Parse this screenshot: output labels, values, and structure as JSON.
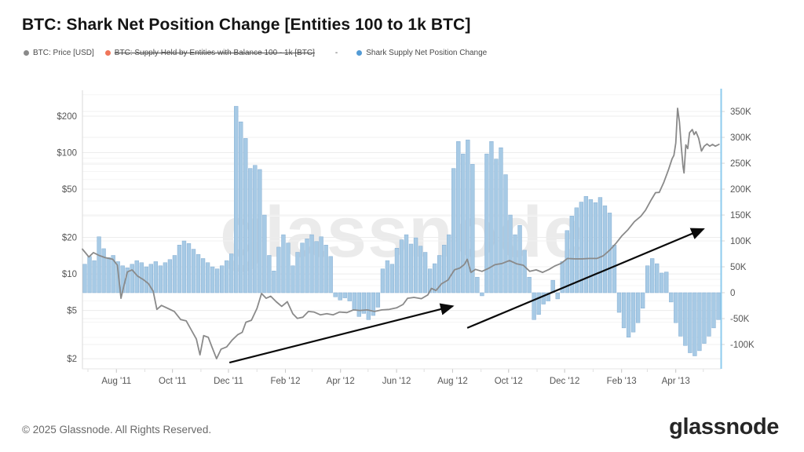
{
  "header": {
    "title": "BTC: Shark Net Position Change [Entities 100 to 1k BTC]"
  },
  "legend": [
    {
      "label": "BTC: Price [USD]",
      "color": "#8a8a8a",
      "strikethrough": false
    },
    {
      "label": "BTC: Supply Held by Entities with Balance 100 - 1k [BTC]",
      "color": "#f0765a",
      "strikethrough": true
    },
    {
      "label": "Shark Supply Net Position Change",
      "color": "#539bd5",
      "strikethrough": false
    }
  ],
  "legend_separator": "-",
  "watermark": "glassnode",
  "footer": {
    "copyright": "© 2025 Glassnode. All Rights Reserved.",
    "brand": "glassnode"
  },
  "colors": {
    "bar_fill": "#a7cae5",
    "bar_stroke": "#84aed3",
    "price_line": "#8a8a8a",
    "right_axis_line": "#8ecbee",
    "grid_major": "#ececec",
    "grid_minor": "#f5f5f5",
    "grid_right": "#f0f0f0",
    "axis_text": "#555555",
    "annotation": "#0a0a0a"
  },
  "chart_data": {
    "type": "mixed",
    "x_domain": [
      "2011-06-25",
      "2013-05-20"
    ],
    "x_ticks": [
      {
        "date": "2011-08-01",
        "label": "Aug '11"
      },
      {
        "date": "2011-10-01",
        "label": "Oct '11"
      },
      {
        "date": "2011-12-01",
        "label": "Dec '11"
      },
      {
        "date": "2012-02-01",
        "label": "Feb '12"
      },
      {
        "date": "2012-04-01",
        "label": "Apr '12"
      },
      {
        "date": "2012-06-01",
        "label": "Jun '12"
      },
      {
        "date": "2012-08-01",
        "label": "Aug '12"
      },
      {
        "date": "2012-10-01",
        "label": "Oct '12"
      },
      {
        "date": "2012-12-01",
        "label": "Dec '12"
      },
      {
        "date": "2013-02-01",
        "label": "Feb '13"
      },
      {
        "date": "2013-04-01",
        "label": "Apr '13"
      }
    ],
    "y_left": {
      "scale": "log",
      "title": "BTC Price [USD]",
      "range": [
        1.65,
        327
      ],
      "ticks": [
        2,
        5,
        10,
        20,
        50,
        100,
        200
      ],
      "labels": [
        "$2",
        "$5",
        "$10",
        "$20",
        "$50",
        "$100",
        "$200"
      ],
      "minor_ticks": [
        3,
        4,
        6,
        7,
        8,
        9,
        30,
        40,
        60,
        70,
        80,
        90,
        300
      ]
    },
    "y_right": {
      "scale": "linear",
      "title": "Shark Supply Net Position Change",
      "range": [
        -147,
        391
      ],
      "ticks": [
        -100,
        -50,
        0,
        50,
        100,
        150,
        200,
        250,
        300,
        350
      ],
      "labels": [
        "-100K",
        "-50K",
        "0",
        "50K",
        "100K",
        "150K",
        "200K",
        "250K",
        "300K",
        "350K"
      ]
    },
    "series": [
      {
        "name": "Shark Supply Net Position Change",
        "type": "bar",
        "axis": "right",
        "unit": "K BTC",
        "values_k": [
          55,
          70,
          62,
          108,
          85,
          68,
          72,
          60,
          52,
          48,
          55,
          62,
          58,
          50,
          55,
          60,
          52,
          58,
          64,
          72,
          92,
          100,
          95,
          84,
          74,
          66,
          58,
          50,
          46,
          52,
          62,
          75,
          360,
          330,
          298,
          240,
          246,
          238,
          150,
          72,
          42,
          88,
          112,
          96,
          52,
          78,
          96,
          104,
          112,
          99,
          108,
          92,
          70,
          -8,
          -14,
          -10,
          -16,
          -34,
          -46,
          -40,
          -52,
          -44,
          -28,
          46,
          62,
          55,
          86,
          102,
          112,
          94,
          106,
          90,
          78,
          46,
          56,
          72,
          92,
          112,
          240,
          292,
          268,
          295,
          248,
          30,
          -6,
          268,
          292,
          258,
          280,
          228,
          150,
          112,
          130,
          82,
          30,
          -52,
          -42,
          -22,
          -16,
          24,
          -12,
          60,
          120,
          148,
          164,
          175,
          186,
          180,
          174,
          184,
          168,
          154,
          92,
          -38,
          -68,
          -86,
          -76,
          -58,
          -30,
          52,
          66,
          56,
          38,
          40,
          -18,
          -58,
          -84,
          -102,
          -116,
          -122,
          -112,
          -98,
          -84,
          -68,
          -52
        ]
      },
      {
        "name": "BTC: Price [USD]",
        "type": "line",
        "axis": "left",
        "unit": "USD",
        "points": [
          [
            "2011-06-25",
            16
          ],
          [
            "2011-07-02",
            13.8
          ],
          [
            "2011-07-07",
            15
          ],
          [
            "2011-07-13",
            14.2
          ],
          [
            "2011-07-20",
            13.6
          ],
          [
            "2011-07-28",
            13.2
          ],
          [
            "2011-08-02",
            11.8
          ],
          [
            "2011-08-06",
            6.3
          ],
          [
            "2011-08-09",
            7.9
          ],
          [
            "2011-08-13",
            10.4
          ],
          [
            "2011-08-18",
            10.8
          ],
          [
            "2011-08-24",
            9.6
          ],
          [
            "2011-08-30",
            9
          ],
          [
            "2011-09-05",
            8.3
          ],
          [
            "2011-09-10",
            7.2
          ],
          [
            "2011-09-14",
            5.1
          ],
          [
            "2011-09-19",
            5.5
          ],
          [
            "2011-09-26",
            5.2
          ],
          [
            "2011-10-03",
            4.9
          ],
          [
            "2011-10-10",
            4.2
          ],
          [
            "2011-10-16",
            4.1
          ],
          [
            "2011-10-22",
            3.4
          ],
          [
            "2011-10-27",
            2.9
          ],
          [
            "2011-10-31",
            2.15
          ],
          [
            "2011-11-04",
            3.1
          ],
          [
            "2011-11-09",
            3
          ],
          [
            "2011-11-13",
            2.5
          ],
          [
            "2011-11-18",
            2
          ],
          [
            "2011-11-23",
            2.4
          ],
          [
            "2011-11-29",
            2.5
          ],
          [
            "2011-12-05",
            2.85
          ],
          [
            "2011-12-11",
            3.15
          ],
          [
            "2011-12-16",
            3.3
          ],
          [
            "2011-12-20",
            4
          ],
          [
            "2011-12-26",
            4.15
          ],
          [
            "2012-01-01",
            5.2
          ],
          [
            "2012-01-06",
            6.9
          ],
          [
            "2012-01-11",
            6.3
          ],
          [
            "2012-01-16",
            6.55
          ],
          [
            "2012-01-22",
            5.9
          ],
          [
            "2012-01-28",
            5.4
          ],
          [
            "2012-02-03",
            5.9
          ],
          [
            "2012-02-09",
            4.7
          ],
          [
            "2012-02-14",
            4.3
          ],
          [
            "2012-02-20",
            4.4
          ],
          [
            "2012-02-26",
            4.9
          ],
          [
            "2012-03-03",
            4.85
          ],
          [
            "2012-03-10",
            4.6
          ],
          [
            "2012-03-17",
            4.7
          ],
          [
            "2012-03-24",
            4.6
          ],
          [
            "2012-03-31",
            4.85
          ],
          [
            "2012-04-08",
            4.8
          ],
          [
            "2012-04-15",
            5.05
          ],
          [
            "2012-04-22",
            5
          ],
          [
            "2012-04-30",
            5.05
          ],
          [
            "2012-05-08",
            4.9
          ],
          [
            "2012-05-16",
            5.05
          ],
          [
            "2012-05-24",
            5.1
          ],
          [
            "2012-06-01",
            5.25
          ],
          [
            "2012-06-08",
            5.6
          ],
          [
            "2012-06-13",
            6.3
          ],
          [
            "2012-06-20",
            6.4
          ],
          [
            "2012-06-28",
            6.25
          ],
          [
            "2012-07-05",
            6.7
          ],
          [
            "2012-07-09",
            7.6
          ],
          [
            "2012-07-14",
            7.3
          ],
          [
            "2012-07-20",
            8.3
          ],
          [
            "2012-07-27",
            8.9
          ],
          [
            "2012-08-03",
            10.8
          ],
          [
            "2012-08-09",
            11.2
          ],
          [
            "2012-08-14",
            12
          ],
          [
            "2012-08-17",
            13.2
          ],
          [
            "2012-08-21",
            10.3
          ],
          [
            "2012-08-26",
            10.9
          ],
          [
            "2012-09-02",
            10.5
          ],
          [
            "2012-09-09",
            11.1
          ],
          [
            "2012-09-16",
            11.9
          ],
          [
            "2012-09-24",
            12.2
          ],
          [
            "2012-10-02",
            12.9
          ],
          [
            "2012-10-10",
            12.1
          ],
          [
            "2012-10-17",
            11.8
          ],
          [
            "2012-10-24",
            10.5
          ],
          [
            "2012-10-31",
            10.8
          ],
          [
            "2012-11-07",
            10.3
          ],
          [
            "2012-11-14",
            10.9
          ],
          [
            "2012-11-20",
            11.6
          ],
          [
            "2012-11-27",
            12.2
          ],
          [
            "2012-12-04",
            13.4
          ],
          [
            "2012-12-12",
            13.3
          ],
          [
            "2012-12-20",
            13.3
          ],
          [
            "2012-12-28",
            13.4
          ],
          [
            "2013-01-05",
            13.4
          ],
          [
            "2013-01-12",
            14.1
          ],
          [
            "2013-01-19",
            15.7
          ],
          [
            "2013-01-26",
            17.9
          ],
          [
            "2013-02-01",
            20.5
          ],
          [
            "2013-02-08",
            23.2
          ],
          [
            "2013-02-15",
            27
          ],
          [
            "2013-02-22",
            29.9
          ],
          [
            "2013-02-27",
            33.5
          ],
          [
            "2013-03-05",
            40.5
          ],
          [
            "2013-03-10",
            46.8
          ],
          [
            "2013-03-14",
            47
          ],
          [
            "2013-03-19",
            57
          ],
          [
            "2013-03-24",
            72
          ],
          [
            "2013-03-28",
            89
          ],
          [
            "2013-03-30",
            95
          ],
          [
            "2013-04-01",
            120
          ],
          [
            "2013-04-03",
            232
          ],
          [
            "2013-04-05",
            178
          ],
          [
            "2013-04-07",
            112
          ],
          [
            "2013-04-09",
            76
          ],
          [
            "2013-04-10",
            68
          ],
          [
            "2013-04-12",
            116
          ],
          [
            "2013-04-14",
            108
          ],
          [
            "2013-04-16",
            146
          ],
          [
            "2013-04-19",
            155
          ],
          [
            "2013-04-21",
            141
          ],
          [
            "2013-04-23",
            149
          ],
          [
            "2013-04-26",
            131
          ],
          [
            "2013-04-29",
            103
          ],
          [
            "2013-05-02",
            113
          ],
          [
            "2013-05-05",
            118
          ],
          [
            "2013-05-08",
            113
          ],
          [
            "2013-05-11",
            117
          ],
          [
            "2013-05-14",
            113
          ],
          [
            "2013-05-18",
            117
          ]
        ]
      }
    ],
    "annotations": [
      {
        "type": "arrow",
        "x1_date": "2011-12-02",
        "y1_right_k": -135,
        "x2_date": "2012-08-01",
        "y2_right_k": -26
      },
      {
        "type": "arrow",
        "x1_date": "2012-08-17",
        "y1_right_k": -68,
        "x2_date": "2013-05-01",
        "y2_right_k": 123
      }
    ]
  }
}
